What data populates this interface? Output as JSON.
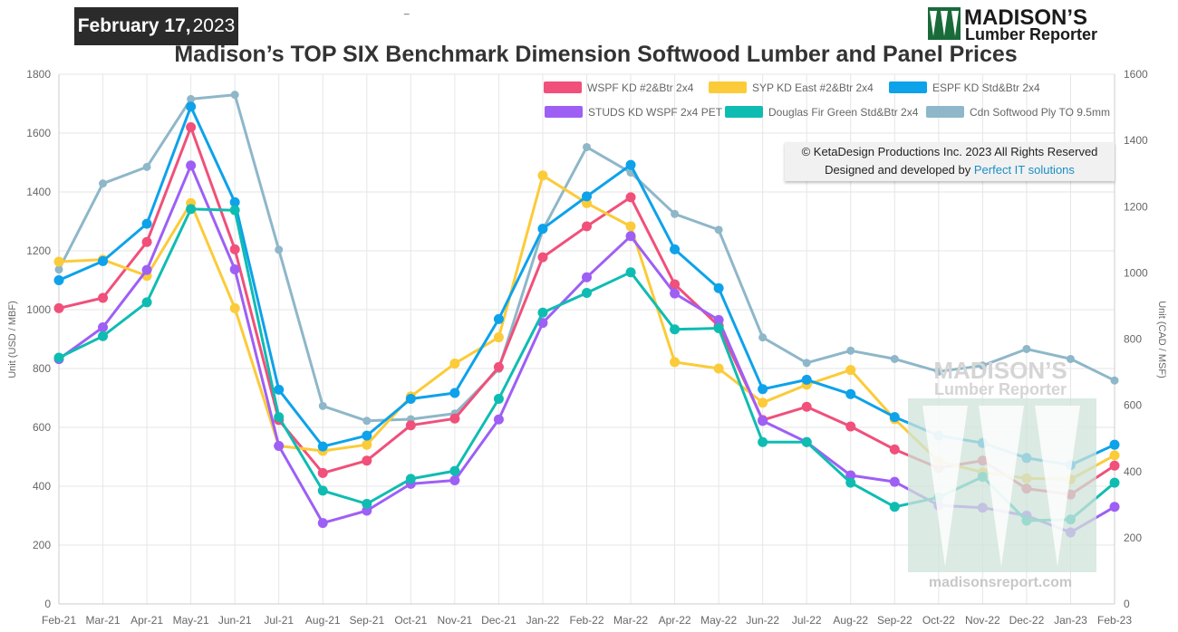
{
  "header": {
    "date_md": "February 17,",
    "date_year": "2023",
    "dash": "_",
    "title": "Madison’s TOP SIX Benchmark Dimension Softwood Lumber and Panel Prices"
  },
  "logo": {
    "line1": "MADISON’S",
    "line2": "Lumber Reporter"
  },
  "copyright": {
    "line1": "© KetaDesign Productions Inc. 2023 All Rights Reserved",
    "line2_prefix": "Designed and developed by",
    "line2_link": "Perfect IT solutions"
  },
  "watermark": {
    "line1": "MADISON’S",
    "line2": "Lumber Reporter",
    "url": "madisonsreport.com"
  },
  "colors": {
    "grid": "#e6e6e6",
    "axis": "#666666",
    "watermark": "#cfe3da"
  },
  "chart_data": {
    "type": "line",
    "x": [
      "Feb-21",
      "Mar-21",
      "Apr-21",
      "May-21",
      "Jun-21",
      "Jul-21",
      "Aug-21",
      "Sep-21",
      "Oct-21",
      "Nov-21",
      "Dec-21",
      "Jan-22",
      "Feb-22",
      "Mar-22",
      "Apr-22",
      "May-22",
      "Jun-22",
      "Jul-22",
      "Aug-22",
      "Sep-22",
      "Oct-22",
      "Nov-22",
      "Dec-22",
      "Jan-23",
      "Feb-23"
    ],
    "y_left": {
      "label": "Unit (USD / MBF)",
      "min": 0,
      "max": 1800,
      "ticks": [
        0,
        200,
        400,
        600,
        800,
        1000,
        1200,
        1400,
        1600,
        1800
      ]
    },
    "y_right": {
      "label": "Unit (CAD / MSF)",
      "min": 0,
      "max": 1600,
      "ticks": [
        0,
        200,
        400,
        600,
        800,
        1000,
        1200,
        1400,
        1600
      ]
    },
    "grid": true,
    "legend_position": "top-right",
    "series": [
      {
        "name": "WSPF KD #2&Btr 2x4",
        "color": "#f0507a",
        "axis": "left",
        "values": [
          1005,
          1040,
          1230,
          1620,
          1205,
          625,
          445,
          487,
          607,
          630,
          805,
          1178,
          1283,
          1382,
          1086,
          945,
          625,
          670,
          603,
          525,
          462,
          487,
          392,
          372,
          470
        ]
      },
      {
        "name": "SYP KD East #2&Btr 2x4",
        "color": "#fbcb39",
        "axis": "left",
        "values": [
          1163,
          1170,
          1115,
          1362,
          1005,
          537,
          520,
          541,
          705,
          817,
          906,
          1456,
          1362,
          1283,
          822,
          800,
          684,
          745,
          795,
          628,
          485,
          447,
          427,
          423,
          505
        ]
      },
      {
        "name": "ESPF KD Std&Btr 2x4",
        "color": "#0da2ea",
        "axis": "left",
        "values": [
          1100,
          1165,
          1292,
          1690,
          1365,
          728,
          535,
          572,
          697,
          717,
          968,
          1275,
          1385,
          1492,
          1205,
          1073,
          730,
          762,
          713,
          635,
          572,
          547,
          496,
          472,
          541
        ]
      },
      {
        "name": "STUDS KD WSPF 2x4 PET",
        "color": "#9e5ff5",
        "axis": "left",
        "values": [
          832,
          940,
          1135,
          1490,
          1137,
          537,
          275,
          317,
          408,
          420,
          627,
          955,
          1110,
          1250,
          1055,
          965,
          622,
          550,
          437,
          415,
          335,
          327,
          300,
          243,
          330
        ]
      },
      {
        "name": "Douglas Fir Green Std&Btr 2x4",
        "color": "#0fbcb2",
        "axis": "left",
        "values": [
          837,
          910,
          1025,
          1342,
          1338,
          635,
          385,
          340,
          425,
          452,
          697,
          990,
          1057,
          1127,
          933,
          937,
          550,
          550,
          412,
          330,
          362,
          432,
          283,
          287,
          412
        ]
      },
      {
        "name": "Cdn Softwood Ply TO 9.5mm",
        "color": "#8eb7c9",
        "axis": "right",
        "values": [
          1010,
          1270,
          1320,
          1525,
          1538,
          1070,
          598,
          553,
          558,
          575,
          710,
          1130,
          1380,
          1303,
          1178,
          1130,
          805,
          728,
          765,
          740,
          702,
          720,
          770,
          740,
          675
        ]
      }
    ]
  }
}
